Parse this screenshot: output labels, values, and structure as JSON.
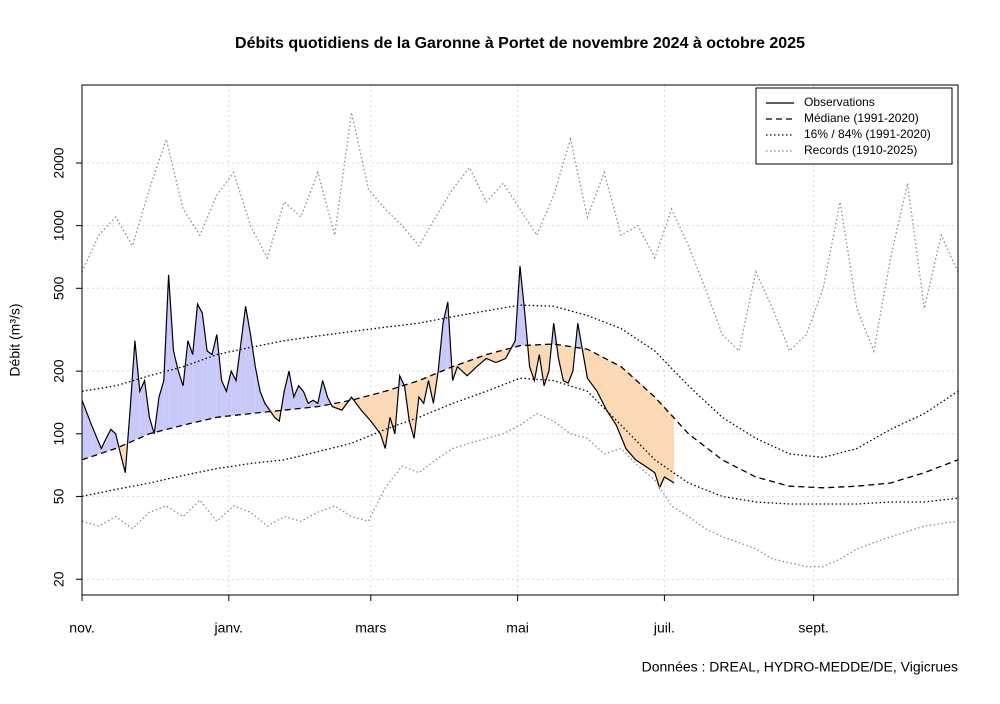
{
  "chart_data": {
    "type": "line",
    "title": "Débits quotidiens de la Garonne à Portet de novembre 2024 à octobre 2025",
    "y_label": "Débit (m³/s)",
    "source": "Données : DREAL, HYDRO-MEDDE/DE, Vigicrues",
    "log_y": true,
    "grid": true,
    "legend": "top-right",
    "fill_above": "#c8c8fa",
    "fill_below": "#fcd8b4",
    "xlim": [
      0,
      364
    ],
    "xticks": [
      {
        "value": 0,
        "label": "nov."
      },
      {
        "value": 61,
        "label": "janv."
      },
      {
        "value": 120,
        "label": "mars"
      },
      {
        "value": 181,
        "label": "mai"
      },
      {
        "value": 242,
        "label": "juil."
      },
      {
        "value": 304,
        "label": "sept."
      }
    ],
    "ylim": [
      16.8,
      4740
    ],
    "yticks": [
      20,
      50,
      100,
      200,
      500,
      1000,
      2000
    ],
    "series": [
      {
        "name": "Observations",
        "style": "solid",
        "color": "#000000",
        "x": [
          0,
          4,
          8,
          10,
          12,
          14,
          16,
          18,
          20,
          22,
          24,
          26,
          28,
          30,
          32,
          34,
          36,
          38,
          40,
          42,
          44,
          46,
          48,
          50,
          52,
          54,
          56,
          58,
          60,
          62,
          64,
          66,
          68,
          70,
          72,
          74,
          76,
          78,
          80,
          82,
          84,
          86,
          88,
          90,
          92,
          94,
          96,
          98,
          100,
          102,
          104,
          108,
          112,
          116,
          120,
          124,
          126,
          128,
          130,
          132,
          134,
          136,
          138,
          140,
          142,
          144,
          146,
          148,
          150,
          152,
          154,
          156,
          158,
          160,
          164,
          168,
          172,
          176,
          180,
          182,
          184,
          186,
          188,
          190,
          192,
          194,
          196,
          198,
          200,
          202,
          204,
          206,
          208,
          210,
          214,
          218,
          222,
          226,
          230,
          234,
          238,
          240,
          242,
          244,
          246
        ],
        "values": [
          145,
          110,
          85,
          95,
          105,
          100,
          80,
          65,
          130,
          280,
          160,
          180,
          120,
          100,
          150,
          180,
          580,
          250,
          200,
          170,
          280,
          240,
          420,
          380,
          250,
          240,
          300,
          180,
          160,
          200,
          180,
          270,
          410,
          300,
          210,
          160,
          140,
          130,
          120,
          115,
          160,
          200,
          150,
          170,
          160,
          140,
          145,
          140,
          180,
          150,
          135,
          130,
          150,
          130,
          115,
          100,
          85,
          120,
          100,
          190,
          170,
          115,
          95,
          150,
          140,
          180,
          140,
          200,
          340,
          430,
          180,
          210,
          200,
          190,
          210,
          230,
          220,
          230,
          280,
          640,
          380,
          210,
          180,
          240,
          170,
          200,
          340,
          230,
          180,
          175,
          200,
          340,
          250,
          185,
          160,
          130,
          110,
          85,
          75,
          70,
          65,
          55,
          62,
          60,
          58
        ]
      },
      {
        "name": "Médiane (1991-2020)",
        "style": "dashed",
        "color": "#000000",
        "x": [
          0,
          14,
          28,
          42,
          56,
          70,
          84,
          98,
          112,
          126,
          140,
          154,
          168,
          182,
          196,
          210,
          224,
          238,
          252,
          266,
          280,
          294,
          308,
          322,
          336,
          350,
          364
        ],
        "values": [
          75,
          85,
          100,
          110,
          120,
          125,
          130,
          135,
          145,
          160,
          180,
          210,
          240,
          265,
          270,
          255,
          210,
          150,
          100,
          75,
          62,
          56,
          55,
          56,
          58,
          65,
          75
        ]
      },
      {
        "name": "16% / 84% (1991-2020)",
        "style": "dotted",
        "color": "#000000",
        "x": [
          0,
          14,
          28,
          42,
          56,
          70,
          84,
          98,
          112,
          126,
          140,
          154,
          168,
          182,
          196,
          210,
          224,
          238,
          252,
          266,
          280,
          294,
          308,
          322,
          336,
          350,
          364
        ],
        "upper": [
          160,
          170,
          190,
          210,
          240,
          260,
          280,
          295,
          310,
          325,
          340,
          365,
          390,
          415,
          410,
          370,
          320,
          250,
          170,
          120,
          95,
          80,
          77,
          85,
          105,
          125,
          160
        ],
        "lower": [
          50,
          54,
          58,
          63,
          68,
          72,
          75,
          82,
          90,
          105,
          120,
          140,
          160,
          185,
          180,
          160,
          110,
          75,
          58,
          50,
          47,
          46,
          46,
          46,
          47,
          47,
          49
        ]
      },
      {
        "name": "Records (1910-2025)",
        "style": "dotted",
        "color": "#8c8c8c",
        "x": [
          0,
          7,
          14,
          21,
          28,
          35,
          42,
          49,
          56,
          63,
          70,
          77,
          84,
          91,
          98,
          105,
          112,
          119,
          126,
          133,
          140,
          147,
          154,
          161,
          168,
          175,
          182,
          189,
          196,
          203,
          210,
          217,
          224,
          231,
          238,
          245,
          252,
          259,
          266,
          273,
          280,
          287,
          294,
          301,
          308,
          315,
          322,
          329,
          336,
          343,
          350,
          357,
          364
        ],
        "upper": [
          600,
          900,
          1100,
          800,
          1500,
          2600,
          1200,
          900,
          1400,
          1800,
          1000,
          700,
          1300,
          1100,
          1800,
          900,
          3500,
          1500,
          1200,
          1000,
          800,
          1100,
          1500,
          1900,
          1300,
          1600,
          1200,
          900,
          1400,
          2600,
          1100,
          1800,
          900,
          1000,
          700,
          1200,
          800,
          500,
          300,
          250,
          600,
          400,
          250,
          300,
          500,
          1300,
          400,
          250,
          700,
          1600,
          400,
          900,
          600
        ],
        "lower": [
          38,
          36,
          40,
          35,
          42,
          45,
          40,
          48,
          38,
          45,
          42,
          36,
          40,
          38,
          42,
          45,
          40,
          38,
          55,
          70,
          65,
          75,
          85,
          90,
          95,
          100,
          110,
          125,
          115,
          100,
          95,
          80,
          85,
          70,
          60,
          45,
          40,
          35,
          32,
          30,
          28,
          25,
          24,
          23,
          23,
          25,
          28,
          30,
          32,
          34,
          36,
          37,
          38
        ]
      }
    ]
  }
}
